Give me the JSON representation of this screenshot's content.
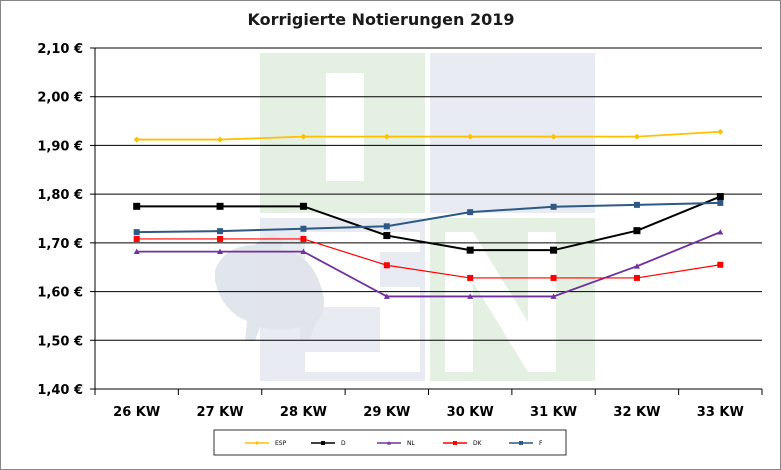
{
  "chart_data": {
    "type": "line",
    "title": "Korrigierte Notierungen 2019",
    "xlabel": "",
    "ylabel": "",
    "categories": [
      "26 KW",
      "27 KW",
      "28 KW",
      "29 KW",
      "30 KW",
      "31 KW",
      "32 KW",
      "33 KW"
    ],
    "ylim": [
      1.4,
      2.1
    ],
    "yticks": [
      1.4,
      1.5,
      1.6,
      1.7,
      1.8,
      1.9,
      2.0,
      2.1
    ],
    "ytick_labels": [
      "1,40 €",
      "1,50 €",
      "1,60 €",
      "1,70 €",
      "1,80 €",
      "1,90 €",
      "2,00 €",
      "2,10 €"
    ],
    "grid": true,
    "legend_position": "bottom",
    "series": [
      {
        "name": "ESP",
        "color": "#FFC000",
        "marker": "diamond",
        "values": [
          1.912,
          1.912,
          1.918,
          1.918,
          1.918,
          1.918,
          1.918,
          1.928
        ]
      },
      {
        "name": "D",
        "color": "#000000",
        "marker": "square",
        "values": [
          1.775,
          1.775,
          1.775,
          1.715,
          1.685,
          1.685,
          1.725,
          1.795
        ]
      },
      {
        "name": "NL",
        "color": "#7030A0",
        "marker": "triangle",
        "values": [
          1.682,
          1.682,
          1.682,
          1.59,
          1.59,
          1.59,
          1.652,
          1.722
        ]
      },
      {
        "name": "DK",
        "color": "#FF0000",
        "marker": "square",
        "values": [
          1.708,
          1.708,
          1.708,
          1.654,
          1.628,
          1.628,
          1.628,
          1.655
        ]
      },
      {
        "name": "F",
        "color": "#2E5984",
        "marker": "square",
        "values": [
          1.722,
          1.724,
          1.729,
          1.734,
          1.763,
          1.774,
          1.778,
          1.782
        ]
      }
    ]
  }
}
